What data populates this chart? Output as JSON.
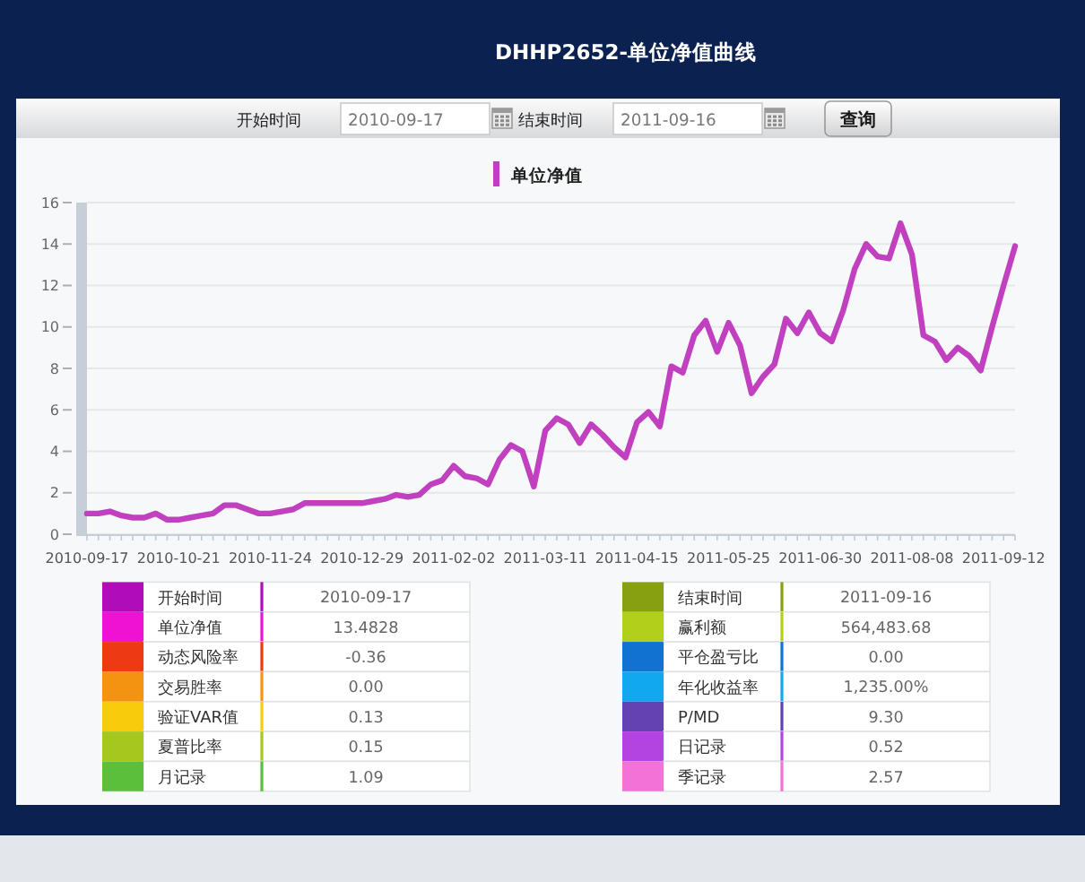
{
  "chart_data": [
    {
      "type": "line",
      "title": "DHHP2652-单位净值曲线",
      "annotations": [
        "开始时间",
        "2010-09-17",
        "结束时间",
        "2011-09-16",
        "查询"
      ],
      "categories": [
        "2010-09-17",
        null,
        null,
        null,
        null,
        null,
        null,
        null,
        "2010-10-21",
        null,
        null,
        null,
        null,
        null,
        null,
        null,
        "2010-11-24",
        null,
        null,
        null,
        null,
        null,
        null,
        null,
        "2010-12-29",
        null,
        null,
        null,
        null,
        null,
        null,
        null,
        "2011-02-02",
        null,
        null,
        null,
        null,
        null,
        null,
        null,
        "2011-03-11",
        null,
        null,
        null,
        null,
        null,
        null,
        null,
        "2011-04-15",
        null,
        null,
        null,
        null,
        null,
        null,
        null,
        "2011-05-25",
        null,
        null,
        null,
        null,
        null,
        null,
        null,
        "2011-06-30",
        null,
        null,
        null,
        null,
        null,
        null,
        null,
        "2011-08-08",
        null,
        null,
        null,
        null,
        null,
        null,
        null,
        "2011-09-12",
        null
      ],
      "series": [
        {
          "name": "单位净值",
          "color": "#c040c0",
          "values": [
            1.0,
            1.0,
            1.1,
            0.9,
            0.8,
            0.8,
            1.0,
            0.7,
            0.7,
            0.8,
            0.9,
            1.0,
            1.4,
            1.4,
            1.2,
            1.0,
            1.0,
            1.1,
            1.2,
            1.5,
            1.5,
            1.5,
            1.5,
            1.5,
            1.5,
            1.6,
            1.7,
            1.9,
            1.8,
            1.9,
            2.4,
            2.6,
            3.3,
            2.8,
            2.7,
            2.4,
            3.6,
            4.3,
            4.0,
            2.3,
            5.0,
            5.6,
            5.3,
            4.4,
            5.3,
            4.8,
            4.2,
            3.7,
            5.4,
            5.9,
            5.2,
            8.1,
            7.8,
            9.6,
            10.3,
            8.8,
            10.2,
            9.1,
            6.8,
            7.6,
            8.2,
            10.4,
            9.7,
            10.7,
            9.7,
            9.3,
            10.8,
            12.8,
            14.0,
            13.4,
            13.3,
            15.0,
            13.5,
            9.6,
            9.3,
            8.4,
            9.0,
            8.6,
            7.9,
            10.0,
            12.0,
            13.9
          ]
        }
      ],
      "ylim": [
        0,
        16
      ],
      "yticks": [
        0,
        2,
        4,
        6,
        8,
        10,
        12,
        14,
        16
      ],
      "grid": "y",
      "legend": "top"
    },
    {
      "type": "other",
      "categories": [
        "开始时间",
        "单位净值",
        "动态风险率",
        "交易胜率",
        "验证VAR值",
        "夏普比率",
        "月记录",
        "结束时间",
        "赢利额",
        "平仓盈亏比",
        "年化收益率",
        "P/MD",
        "日记录",
        "季记录"
      ],
      "value_labels": [
        "2010-09-17",
        "13.4828",
        "-0.36",
        "0.00",
        "0.13",
        "0.15",
        "1.09",
        "2011-09-16",
        "564,483.68",
        "0.00",
        "1,235.00%",
        "9.30",
        "0.52",
        "2.57"
      ],
      "colors": [
        "#b00cb8",
        "#ee12d2",
        "#ee3a12",
        "#f29412",
        "#f8cc0a",
        "#a6c81e",
        "#5cbf3c",
        "#86a010",
        "#b2d01a",
        "#1272d2",
        "#12a8f0",
        "#6442b2",
        "#b444e2",
        "#f272d8"
      ]
    }
  ]
}
